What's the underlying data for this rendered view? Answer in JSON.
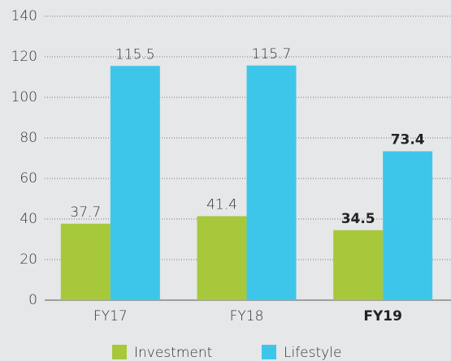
{
  "chart_data": {
    "type": "bar",
    "categories": [
      "FY17",
      "FY18",
      "FY19"
    ],
    "series": [
      {
        "name": "Investment",
        "color": "#a6c83a",
        "values": [
          37.7,
          41.4,
          34.5
        ]
      },
      {
        "name": "Lifestyle",
        "color": "#3ec6ea",
        "values": [
          115.5,
          115.7,
          73.4
        ]
      }
    ],
    "ylim": [
      0,
      140
    ],
    "yticks": [
      0,
      20,
      40,
      60,
      80,
      100,
      120,
      140
    ],
    "grid": true
  }
}
